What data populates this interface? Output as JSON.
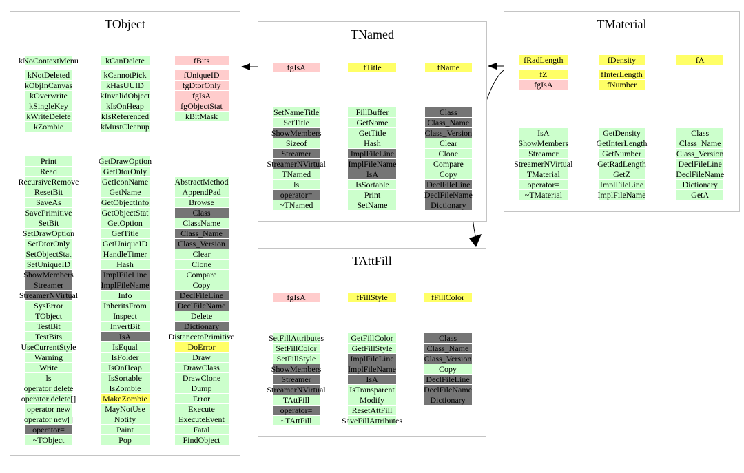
{
  "kind_colors": {
    "g": "#ccffcc",
    "p": "#ffcccc",
    "y": "#ffff66",
    "d": "#757575"
  },
  "kind_meaning": {
    "g": "public-method-or-enum",
    "p": "static-data-member",
    "y": "data-member-or-protected-method",
    "d": "class-internal-method"
  },
  "arrows": [
    {
      "name": "tnamed-to-tobject",
      "from": "TNamed",
      "to": "TObject"
    },
    {
      "name": "tmaterial-to-tnamed",
      "from": "TMaterial",
      "to": "TNamed"
    },
    {
      "name": "tmaterial-to-tattfill",
      "from": "TMaterial",
      "to": "TAttFill"
    }
  ],
  "classes": [
    {
      "name": "TObject",
      "members": [
        [
          [
            "kNoContextMenu",
            "g"
          ],
          [
            "kNotDeleted",
            "g"
          ],
          [
            "kObjInCanvas",
            "g"
          ],
          [
            "kOverwrite",
            "g"
          ],
          [
            "kSingleKey",
            "g"
          ],
          [
            "kWriteDelete",
            "g"
          ],
          [
            "kZombie",
            "g"
          ]
        ],
        [
          [
            "kCanDelete",
            "g"
          ],
          [
            "kCannotPick",
            "g"
          ],
          [
            "kHasUUID",
            "g"
          ],
          [
            "kInvalidObject",
            "g"
          ],
          [
            "kIsOnHeap",
            "g"
          ],
          [
            "kIsReferenced",
            "g"
          ],
          [
            "kMustCleanup",
            "g"
          ]
        ],
        [
          [
            "fBits",
            "p"
          ],
          [
            "fUniqueID",
            "p"
          ],
          [
            "fgDtorOnly",
            "p"
          ],
          [
            "fgIsA",
            "p"
          ],
          [
            "fgObjectStat",
            "p"
          ],
          [
            "kBitMask",
            "g"
          ]
        ]
      ],
      "methods": [
        [
          [
            "Print",
            "g"
          ],
          [
            "Read",
            "g"
          ],
          [
            "RecursiveRemove",
            "g"
          ],
          [
            "ResetBit",
            "g"
          ],
          [
            "SaveAs",
            "g"
          ],
          [
            "SavePrimitive",
            "g"
          ],
          [
            "SetBit",
            "g"
          ],
          [
            "SetDrawOption",
            "g"
          ],
          [
            "SetDtorOnly",
            "g"
          ],
          [
            "SetObjectStat",
            "g"
          ],
          [
            "SetUniqueID",
            "g"
          ],
          [
            "ShowMembers",
            "d"
          ],
          [
            "Streamer",
            "d"
          ],
          [
            "StreamerNVirtual",
            "d"
          ],
          [
            "SysError",
            "g"
          ],
          [
            "TObject",
            "g"
          ],
          [
            "TestBit",
            "g"
          ],
          [
            "TestBits",
            "g"
          ],
          [
            "UseCurrentStyle",
            "g"
          ],
          [
            "Warning",
            "g"
          ],
          [
            "Write",
            "g"
          ],
          [
            "ls",
            "g"
          ],
          [
            "operator delete",
            "g"
          ],
          [
            "operator delete[]",
            "g"
          ],
          [
            "operator new",
            "g"
          ],
          [
            "operator new[]",
            "g"
          ],
          [
            "operator=",
            "d"
          ],
          [
            "~TObject",
            "g"
          ]
        ],
        [
          [
            "GetDrawOption",
            "g"
          ],
          [
            "GetDtorOnly",
            "g"
          ],
          [
            "GetIconName",
            "g"
          ],
          [
            "GetName",
            "g"
          ],
          [
            "GetObjectInfo",
            "g"
          ],
          [
            "GetObjectStat",
            "g"
          ],
          [
            "GetOption",
            "g"
          ],
          [
            "GetTitle",
            "g"
          ],
          [
            "GetUniqueID",
            "g"
          ],
          [
            "HandleTimer",
            "g"
          ],
          [
            "Hash",
            "g"
          ],
          [
            "ImplFileLine",
            "d"
          ],
          [
            "ImplFileName",
            "d"
          ],
          [
            "Info",
            "g"
          ],
          [
            "InheritsFrom",
            "g"
          ],
          [
            "Inspect",
            "g"
          ],
          [
            "InvertBit",
            "g"
          ],
          [
            "IsA",
            "d"
          ],
          [
            "IsEqual",
            "g"
          ],
          [
            "IsFolder",
            "g"
          ],
          [
            "IsOnHeap",
            "g"
          ],
          [
            "IsSortable",
            "g"
          ],
          [
            "IsZombie",
            "g"
          ],
          [
            "MakeZombie",
            "y"
          ],
          [
            "MayNotUse",
            "g"
          ],
          [
            "Notify",
            "g"
          ],
          [
            "Paint",
            "g"
          ],
          [
            "Pop",
            "g"
          ]
        ],
        [
          [
            "AbstractMethod",
            "g"
          ],
          [
            "AppendPad",
            "g"
          ],
          [
            "Browse",
            "g"
          ],
          [
            "Class",
            "d"
          ],
          [
            "ClassName",
            "g"
          ],
          [
            "Class_Name",
            "d"
          ],
          [
            "Class_Version",
            "d"
          ],
          [
            "Clear",
            "g"
          ],
          [
            "Clone",
            "g"
          ],
          [
            "Compare",
            "g"
          ],
          [
            "Copy",
            "g"
          ],
          [
            "DeclFileLine",
            "d"
          ],
          [
            "DeclFileName",
            "d"
          ],
          [
            "Delete",
            "g"
          ],
          [
            "Dictionary",
            "d"
          ],
          [
            "DistancetoPrimitive",
            "g"
          ],
          [
            "DoError",
            "y"
          ],
          [
            "Draw",
            "g"
          ],
          [
            "DrawClass",
            "g"
          ],
          [
            "DrawClone",
            "g"
          ],
          [
            "Dump",
            "g"
          ],
          [
            "Error",
            "g"
          ],
          [
            "Execute",
            "g"
          ],
          [
            "ExecuteEvent",
            "g"
          ],
          [
            "Fatal",
            "g"
          ],
          [
            "FindObject",
            "g"
          ]
        ]
      ]
    },
    {
      "name": "TNamed",
      "members": [
        [
          [
            "fgIsA",
            "p"
          ]
        ],
        [
          [
            "fTitle",
            "y"
          ]
        ],
        [
          [
            "fName",
            "y"
          ]
        ]
      ],
      "methods": [
        [
          [
            "SetNameTitle",
            "g"
          ],
          [
            "SetTitle",
            "g"
          ],
          [
            "ShowMembers",
            "d"
          ],
          [
            "Sizeof",
            "g"
          ],
          [
            "Streamer",
            "d"
          ],
          [
            "StreamerNVirtual",
            "d"
          ],
          [
            "TNamed",
            "g"
          ],
          [
            "ls",
            "g"
          ],
          [
            "operator=",
            "d"
          ],
          [
            "~TNamed",
            "g"
          ]
        ],
        [
          [
            "FillBuffer",
            "g"
          ],
          [
            "GetName",
            "g"
          ],
          [
            "GetTitle",
            "g"
          ],
          [
            "Hash",
            "g"
          ],
          [
            "ImplFileLine",
            "d"
          ],
          [
            "ImplFileName",
            "d"
          ],
          [
            "IsA",
            "d"
          ],
          [
            "IsSortable",
            "g"
          ],
          [
            "Print",
            "g"
          ],
          [
            "SetName",
            "g"
          ]
        ],
        [
          [
            "Class",
            "d"
          ],
          [
            "Class_Name",
            "d"
          ],
          [
            "Class_Version",
            "d"
          ],
          [
            "Clear",
            "g"
          ],
          [
            "Clone",
            "g"
          ],
          [
            "Compare",
            "g"
          ],
          [
            "Copy",
            "g"
          ],
          [
            "DeclFileLine",
            "d"
          ],
          [
            "DeclFileName",
            "d"
          ],
          [
            "Dictionary",
            "d"
          ]
        ]
      ]
    },
    {
      "name": "TMaterial",
      "members": [
        [
          [
            "fRadLength",
            "y"
          ],
          [
            "fZ",
            "y"
          ],
          [
            "fgIsA",
            "p"
          ]
        ],
        [
          [
            "fDensity",
            "y"
          ],
          [
            "fInterLength",
            "y"
          ],
          [
            "fNumber",
            "y"
          ]
        ],
        [
          [
            "fA",
            "y"
          ]
        ]
      ],
      "methods": [
        [
          [
            "IsA",
            "g"
          ],
          [
            "ShowMembers",
            "g"
          ],
          [
            "Streamer",
            "g"
          ],
          [
            "StreamerNVirtual",
            "g"
          ],
          [
            "TMaterial",
            "g"
          ],
          [
            "operator=",
            "g"
          ],
          [
            "~TMaterial",
            "g"
          ]
        ],
        [
          [
            "GetDensity",
            "g"
          ],
          [
            "GetInterLength",
            "g"
          ],
          [
            "GetNumber",
            "g"
          ],
          [
            "GetRadLength",
            "g"
          ],
          [
            "GetZ",
            "g"
          ],
          [
            "ImplFileLine",
            "g"
          ],
          [
            "ImplFileName",
            "g"
          ]
        ],
        [
          [
            "Class",
            "g"
          ],
          [
            "Class_Name",
            "g"
          ],
          [
            "Class_Version",
            "g"
          ],
          [
            "DeclFileLine",
            "g"
          ],
          [
            "DeclFileName",
            "g"
          ],
          [
            "Dictionary",
            "g"
          ],
          [
            "GetA",
            "g"
          ]
        ]
      ]
    },
    {
      "name": "TAttFill",
      "members": [
        [
          [
            "fgIsA",
            "p"
          ]
        ],
        [
          [
            "fFillStyle",
            "y"
          ]
        ],
        [
          [
            "fFillColor",
            "y"
          ]
        ]
      ],
      "methods": [
        [
          [
            "SetFillAttributes",
            "g"
          ],
          [
            "SetFillColor",
            "g"
          ],
          [
            "SetFillStyle",
            "g"
          ],
          [
            "ShowMembers",
            "d"
          ],
          [
            "Streamer",
            "d"
          ],
          [
            "StreamerNVirtual",
            "d"
          ],
          [
            "TAttFill",
            "g"
          ],
          [
            "operator=",
            "d"
          ],
          [
            "~TAttFill",
            "g"
          ]
        ],
        [
          [
            "GetFillColor",
            "g"
          ],
          [
            "GetFillStyle",
            "g"
          ],
          [
            "ImplFileLine",
            "d"
          ],
          [
            "ImplFileName",
            "d"
          ],
          [
            "IsA",
            "d"
          ],
          [
            "IsTransparent",
            "g"
          ],
          [
            "Modify",
            "g"
          ],
          [
            "ResetAttFill",
            "g"
          ],
          [
            "SaveFillAttributes",
            "g"
          ]
        ],
        [
          [
            "Class",
            "d"
          ],
          [
            "Class_Name",
            "d"
          ],
          [
            "Class_Version",
            "d"
          ],
          [
            "Copy",
            "g"
          ],
          [
            "DeclFileLine",
            "d"
          ],
          [
            "DeclFileName",
            "d"
          ],
          [
            "Dictionary",
            "d"
          ]
        ]
      ]
    }
  ]
}
